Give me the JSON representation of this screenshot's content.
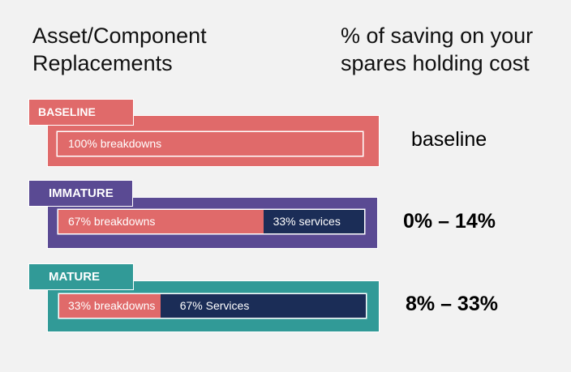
{
  "headings": {
    "left": [
      "Asset/Component",
      "Replacements"
    ],
    "right": [
      "% of saving on your",
      "spares holding cost"
    ]
  },
  "colors": {
    "baseline": "#e06a6a",
    "immature": "#5a4a93",
    "mature": "#319a97",
    "breakdowns": "#e06a6a",
    "services": "#1b2d57",
    "background": "#f2f2f2"
  },
  "rows": [
    {
      "tag": "BASELINE",
      "segments": [
        {
          "label": "100% breakdowns",
          "percent": 100,
          "type": "breakdowns"
        }
      ],
      "saving": "baseline"
    },
    {
      "tag": "IMMATURE",
      "segments": [
        {
          "label": "67% breakdowns",
          "percent": 67,
          "type": "breakdowns"
        },
        {
          "label": "33% services",
          "percent": 33,
          "type": "services"
        }
      ],
      "saving": "0% – 14%"
    },
    {
      "tag": "MATURE",
      "segments": [
        {
          "label": "33% breakdowns",
          "percent": 33,
          "type": "breakdowns"
        },
        {
          "label": "67% Services",
          "percent": 67,
          "type": "services"
        }
      ],
      "saving": "8% – 33%"
    }
  ]
}
